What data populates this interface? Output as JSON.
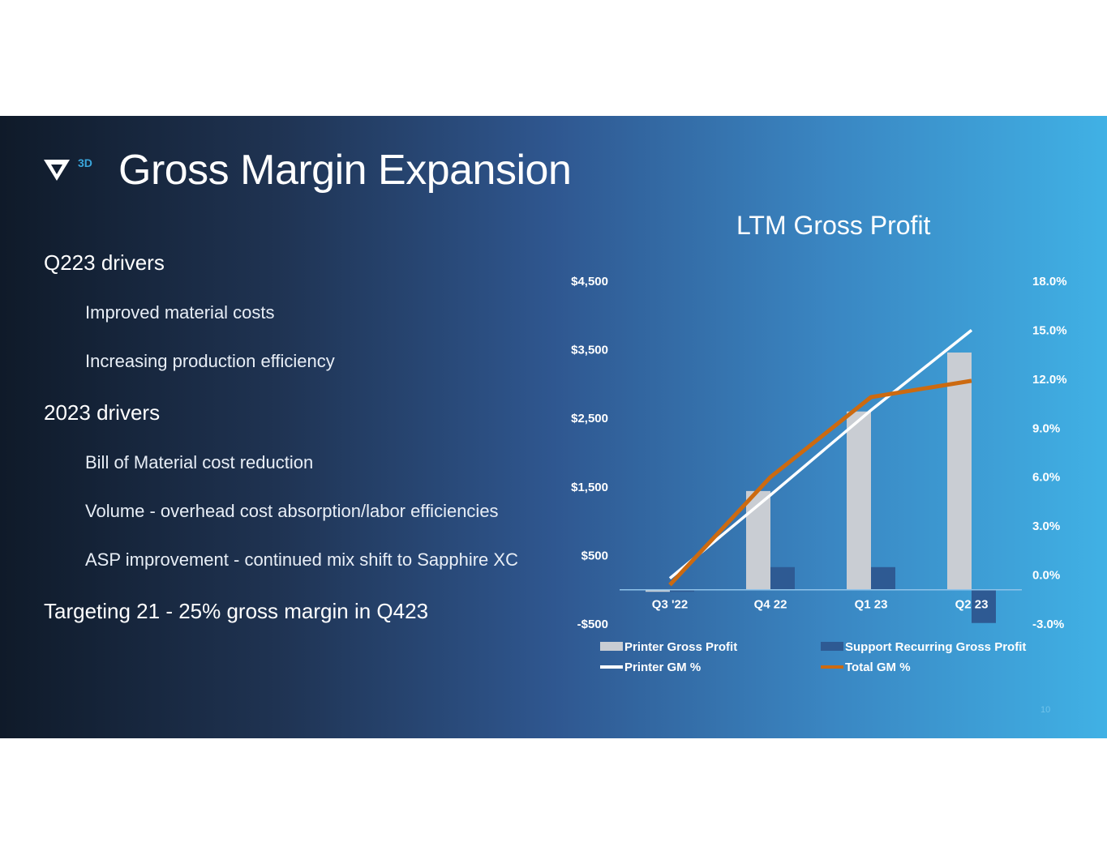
{
  "slide": {
    "logo_text": "3D",
    "title": "Gross Margin Expansion",
    "page_number": "10",
    "sections": [
      {
        "heading": "Q223 drivers",
        "items": [
          "Improved material costs",
          "Increasing production efficiency"
        ]
      },
      {
        "heading": "2023 drivers",
        "items": [
          "Bill of Material cost reduction",
          "Volume - overhead cost absorption/labor efficiencies",
          "ASP improvement - continued mix shift to Sapphire XC"
        ]
      }
    ],
    "target": "Targeting 21 - 25% gross margin in Q423"
  },
  "chart_data": {
    "type": "bar",
    "title": "LTM Gross Profit",
    "categories": [
      "Q3 '22",
      "Q4 22",
      "Q1 23",
      "Q2 23"
    ],
    "left_axis": {
      "ticks": [
        "$4,500",
        "$3,500",
        "$2,500",
        "$1,500",
        "$500",
        "-$500"
      ],
      "ylim": [
        -500,
        4500
      ]
    },
    "right_axis": {
      "ticks": [
        "18.0%",
        "15.0%",
        "12.0%",
        "9.0%",
        "6.0%",
        "3.0%",
        "0.0%",
        "-3.0%"
      ],
      "ylim": [
        -3,
        18
      ]
    },
    "series": [
      {
        "name": "Printer Gross Profit",
        "kind": "bar",
        "axis": "left",
        "color": "#c9cdd3",
        "values": [
          -30,
          1440,
          2600,
          3460
        ]
      },
      {
        "name": "Support Recurring Gross Profit",
        "kind": "bar",
        "axis": "left",
        "color": "#2e5a93",
        "values": [
          -30,
          330,
          330,
          -485
        ]
      },
      {
        "name": "Printer GM %",
        "kind": "line",
        "axis": "right",
        "color": "#ffffff",
        "values": [
          -0.2,
          4.9,
          10.1,
          15.0
        ]
      },
      {
        "name": "Total GM %",
        "kind": "line",
        "axis": "right",
        "color": "#cc6a10",
        "values": [
          -0.6,
          6.0,
          10.9,
          11.9
        ]
      }
    ],
    "legend": "bottom"
  }
}
